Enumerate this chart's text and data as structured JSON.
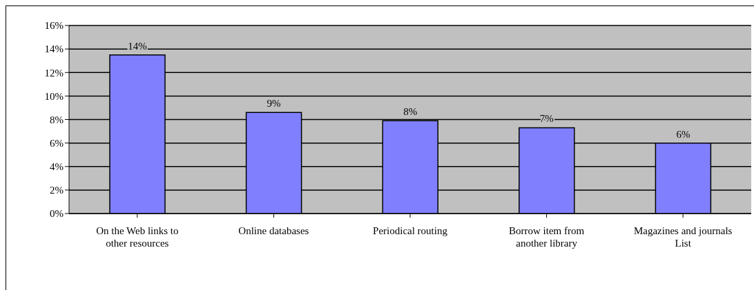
{
  "chart_data": {
    "type": "bar",
    "categories": [
      "On the Web links to other resources",
      "Online databases",
      "Periodical routing",
      "Borrow item from another library",
      "Magazines and journals List"
    ],
    "values": [
      13.5,
      8.6,
      7.9,
      7.3,
      6.0
    ],
    "value_labels": [
      "14%",
      "9%",
      "8%",
      "7%",
      "6%"
    ],
    "color": "#8080ff",
    "ylim": [
      0,
      16
    ],
    "yticks": [
      {
        "value": 0,
        "label": "0%"
      },
      {
        "value": 2,
        "label": "2%"
      },
      {
        "value": 4,
        "label": "4%"
      },
      {
        "value": 6,
        "label": "6%"
      },
      {
        "value": 8,
        "label": "8%"
      },
      {
        "value": 10,
        "label": "10%"
      },
      {
        "value": 12,
        "label": "12%"
      },
      {
        "value": 14,
        "label": "14%"
      },
      {
        "value": 16,
        "label": "16%"
      }
    ],
    "grid": "y",
    "legend": false
  }
}
